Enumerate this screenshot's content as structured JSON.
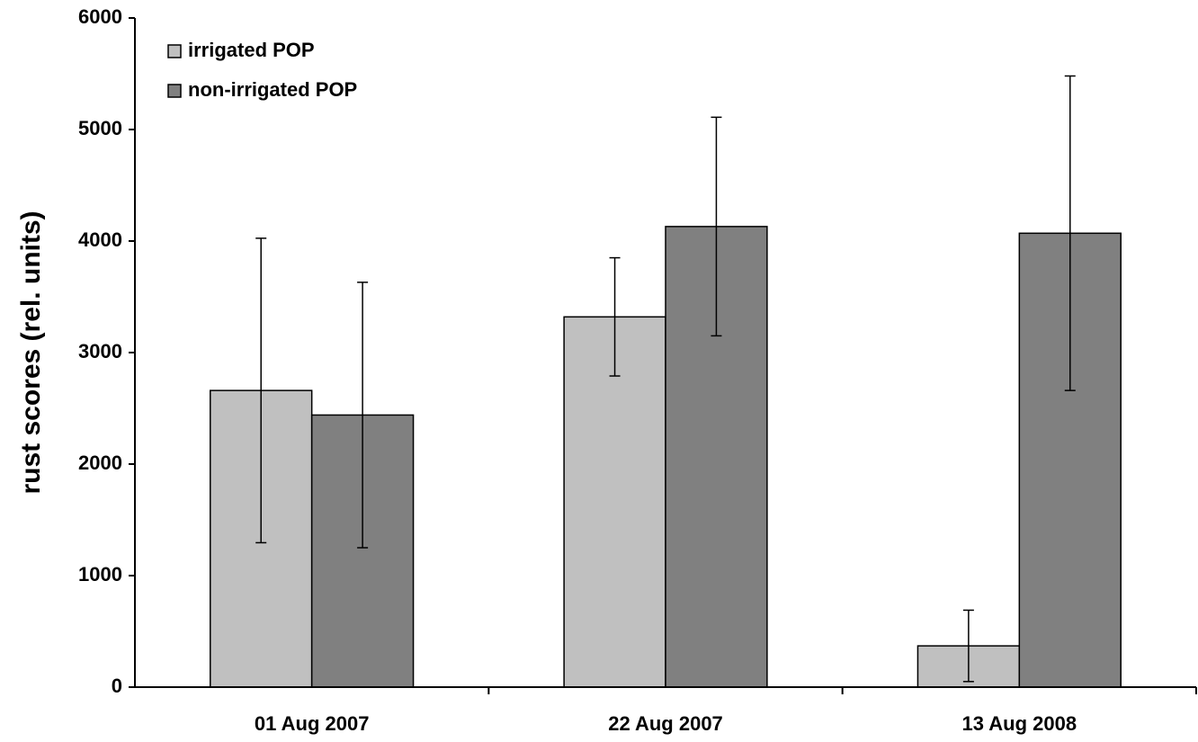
{
  "chart_data": {
    "type": "bar",
    "y_label": "rust scores (rel. units)",
    "categories": [
      "01 Aug 2007",
      "22 Aug 2007",
      "13 Aug 2008"
    ],
    "series": [
      {
        "name": "irrigated POP",
        "color": "#c0c0c0",
        "values": [
          2660,
          3320,
          370
        ],
        "errors": [
          1365,
          530,
          320
        ]
      },
      {
        "name": "non-irrigated POP",
        "color": "#808080",
        "values": [
          2440,
          4130,
          4070
        ],
        "errors": [
          1190,
          980,
          1410
        ]
      }
    ],
    "ylim": [
      0,
      6000
    ],
    "yticks": [
      0,
      1000,
      2000,
      3000,
      4000,
      5000,
      6000
    ],
    "legend": "upper left"
  }
}
